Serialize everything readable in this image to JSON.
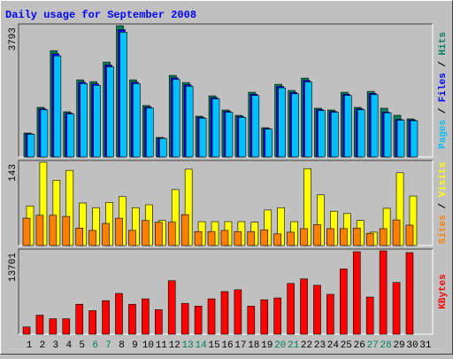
{
  "chart_data": [
    {
      "type": "bar",
      "title": "Daily usage for September 2008",
      "legend_separator": " / ",
      "ylim": [
        0,
        3793
      ],
      "yticks": [
        3793
      ],
      "series": [
        {
          "name": "Hits",
          "color": "#00805c",
          "values": [
            691,
            1434,
            3072,
            1306,
            2227,
            2176,
            2739,
            3793,
            2227,
            1485,
            563,
            2355,
            2150,
            1178,
            1766,
            1357,
            1203,
            1869,
            845,
            2099,
            1920,
            2278,
            1408,
            1357,
            1869,
            1434,
            1894,
            1408,
            1203,
            1101,
            null
          ]
        },
        {
          "name": "Files",
          "color": "#0000ff",
          "values": [
            668,
            1390,
            2980,
            1266,
            2160,
            2110,
            2656,
            3680,
            2160,
            1440,
            546,
            2284,
            2085,
            1142,
            1713,
            1316,
            1166,
            1812,
            819,
            2036,
            1862,
            2210,
            1365,
            1316,
            1812,
            1390,
            1837,
            1300,
            1080,
            1068,
            null
          ]
        },
        {
          "name": "Pages",
          "color": "#00c0ff",
          "values": [
            655,
            1362,
            2920,
            1240,
            2117,
            2068,
            2603,
            3606,
            2117,
            1411,
            535,
            2238,
            2043,
            1119,
            1679,
            1290,
            1143,
            1776,
            803,
            1995,
            1825,
            2166,
            1338,
            1290,
            1776,
            1362,
            1800,
            1274,
            1058,
            1047,
            null
          ]
        }
      ]
    },
    {
      "type": "bar",
      "legend_separator": " / ",
      "ylim": [
        0,
        143
      ],
      "yticks": [
        143
      ],
      "series": [
        {
          "name": "Visits",
          "color": "#ffff00",
          "values": [
            68,
            143,
            112,
            129,
            73,
            65,
            74,
            84,
            65,
            70,
            43,
            96,
            131,
            41,
            41,
            41,
            41,
            40,
            61,
            65,
            41,
            132,
            87,
            59,
            55,
            43,
            23,
            64,
            125,
            85,
            null
          ]
        },
        {
          "name": "Sites",
          "color": "#ff8000",
          "values": [
            47,
            52,
            52,
            50,
            30,
            26,
            38,
            47,
            26,
            43,
            40,
            40,
            53,
            24,
            24,
            26,
            24,
            24,
            27,
            20,
            23,
            29,
            36,
            29,
            29,
            30,
            21,
            29,
            44,
            35,
            null
          ]
        }
      ]
    },
    {
      "type": "bar",
      "ylim": [
        0,
        13701
      ],
      "yticks": [
        13701
      ],
      "categories": [
        "1",
        "2",
        "3",
        "4",
        "5",
        "6",
        "7",
        "8",
        "9",
        "10",
        "11",
        "12",
        "13",
        "14",
        "15",
        "16",
        "17",
        "18",
        "19",
        "20",
        "21",
        "22",
        "23",
        "24",
        "25",
        "26",
        "27",
        "28",
        "29",
        "30",
        "31"
      ],
      "category_colors": [
        "#000000",
        "#000000",
        "#000000",
        "#000000",
        "#000000",
        "#00805c",
        "#00805c",
        "#000000",
        "#000000",
        "#000000",
        "#000000",
        "#000000",
        "#00805c",
        "#00805c",
        "#000000",
        "#000000",
        "#000000",
        "#000000",
        "#000000",
        "#00805c",
        "#00805c",
        "#000000",
        "#000000",
        "#000000",
        "#000000",
        "#000000",
        "#00805c",
        "#00805c",
        "#000000",
        "#000000",
        "#000000"
      ],
      "series": [
        {
          "name": "KBytes",
          "color": "#ff0000",
          "values": [
            1192,
            3129,
            2533,
            2533,
            4917,
            3874,
            5513,
            6705,
            4917,
            5811,
            4023,
            8791,
            5066,
            4619,
            5811,
            7003,
            7301,
            4619,
            5662,
            5960,
            8344,
            9089,
            8046,
            6556,
            10728,
            13559,
            6109,
            13701,
            8493,
            13410,
            null
          ]
        }
      ]
    }
  ]
}
